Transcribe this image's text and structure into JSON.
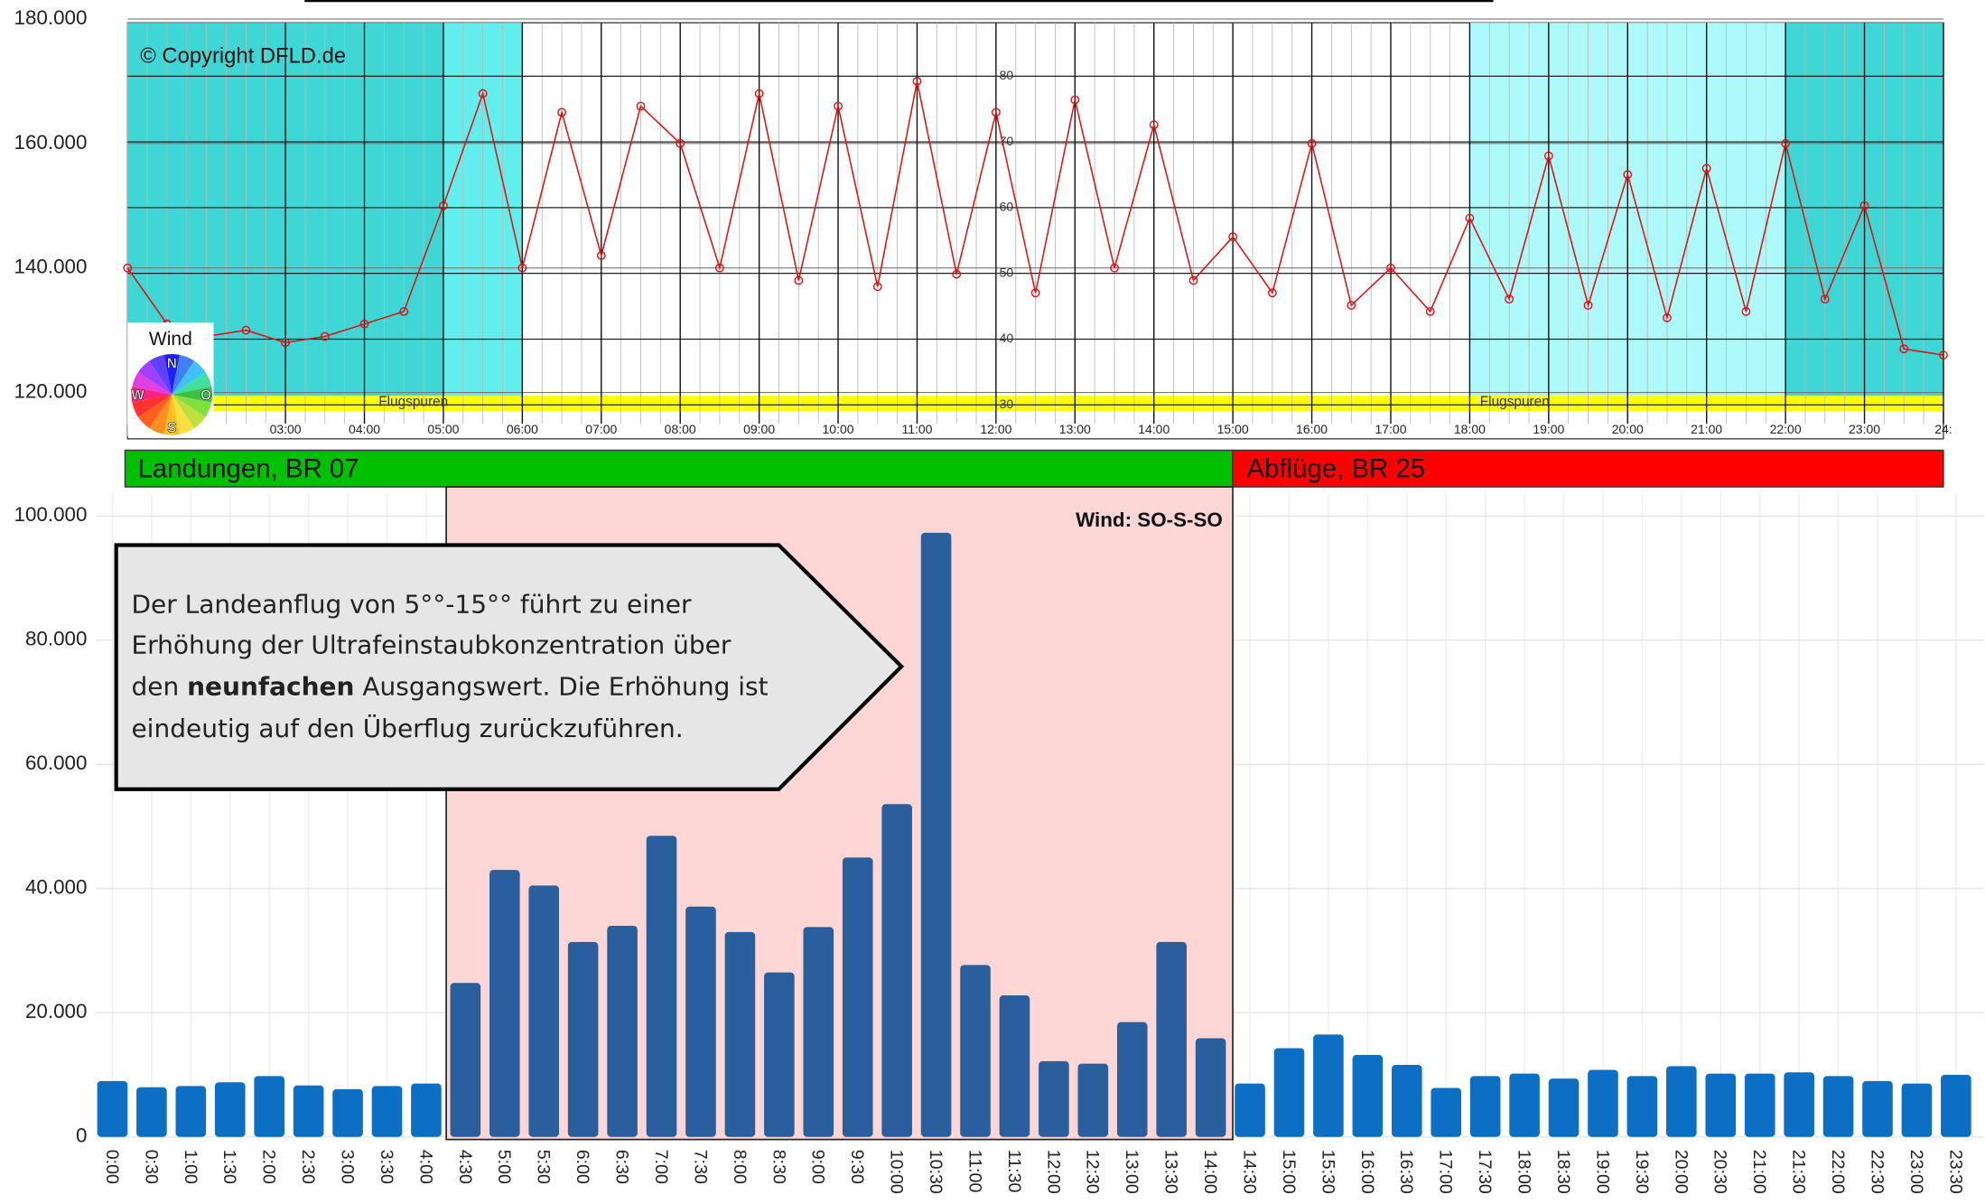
{
  "chart_data": [
    {
      "type": "line",
      "annotations": [
        "© Copyright DFLD.de",
        "Flugspuren",
        "Flugspuren"
      ],
      "wind_legend": {
        "title": "Wind",
        "labels": [
          "N",
          "W",
          "S",
          "O"
        ]
      },
      "xlim": [
        1,
        24
      ],
      "xticks": [
        {
          "value": 3,
          "label": "03:00"
        },
        {
          "value": 4,
          "label": "04:00"
        },
        {
          "value": 5,
          "label": "05:00"
        },
        {
          "value": 6,
          "label": "06:00"
        },
        {
          "value": 7,
          "label": "07:00"
        },
        {
          "value": 8,
          "label": "08:00"
        },
        {
          "value": 9,
          "label": "09:00"
        },
        {
          "value": 10,
          "label": "10:00"
        },
        {
          "value": 11,
          "label": "11:00"
        },
        {
          "value": 12,
          "label": "12:00"
        },
        {
          "value": 13,
          "label": "13:00"
        },
        {
          "value": 14,
          "label": "14:00"
        },
        {
          "value": 15,
          "label": "15:00"
        },
        {
          "value": 16,
          "label": "16:00"
        },
        {
          "value": 17,
          "label": "17:00"
        },
        {
          "value": 18,
          "label": "18:00"
        },
        {
          "value": 19,
          "label": "19:00"
        },
        {
          "value": 20,
          "label": "20:00"
        },
        {
          "value": 21,
          "label": "21:00"
        },
        {
          "value": 22,
          "label": "22:00"
        },
        {
          "value": 23,
          "label": "23:00"
        },
        {
          "value": 24,
          "label": "24:"
        }
      ],
      "ylim": [
        116000,
        180000
      ],
      "yticks": [
        {
          "value": 120000,
          "label": "120.000"
        },
        {
          "value": 140000,
          "label": "140.000"
        },
        {
          "value": 160000,
          "label": "160.000"
        },
        {
          "value": 180000,
          "label": "180.000"
        }
      ],
      "y2lim": [
        28.1,
        88.7
      ],
      "y2ticks": [
        30,
        40,
        50,
        60,
        70,
        80
      ],
      "grid": true,
      "series": [
        {
          "color": "#e01010",
          "x": [
            1,
            1.5,
            2,
            2.5,
            3,
            3.5,
            4,
            4.5,
            5,
            5.5,
            6,
            6.5,
            7,
            7.5,
            8,
            8.5,
            9,
            9.5,
            10,
            10.5,
            11,
            11.5,
            12,
            12.5,
            13,
            13.5,
            14,
            14.5,
            15,
            15.5,
            16,
            16.5,
            17,
            17.5,
            18,
            18.5,
            19,
            19.5,
            20,
            20.5,
            21,
            21.5,
            22,
            22.5,
            23,
            23.5,
            24
          ],
          "values": [
            140000,
            131000,
            129000,
            130000,
            128000,
            129000,
            131000,
            133000,
            150000,
            168000,
            140000,
            165000,
            142000,
            166000,
            160000,
            140000,
            168000,
            138000,
            166000,
            137000,
            170000,
            139000,
            165000,
            136000,
            167000,
            140000,
            163000,
            138000,
            145000,
            136000,
            160000,
            134000,
            140000,
            133000,
            148000,
            135000,
            158000,
            134000,
            155000,
            132000,
            156000,
            133000,
            160000,
            135000,
            150000,
            127000,
            126000
          ]
        }
      ]
    },
    {
      "type": "bar",
      "zones": [
        {
          "label": "Landungen, BR 07",
          "color": "#00c000"
        },
        {
          "label": "Abflüge, BR 25",
          "color": "#ff0000"
        }
      ],
      "annotations": [
        "Wind: SO-S-SO"
      ],
      "callout": [
        "Der Landeanflug von 5°°-15°° führt zu einer",
        "Erhöhung der Ultrafeinstaubkonzentration über",
        "den ",
        "neunfachen",
        " Ausgangswert. Die Erhöhung ist",
        "eindeutig auf den Überflug zurückzuführen."
      ],
      "categories": [
        "0:00",
        "0:30",
        "1:00",
        "1:30",
        "2:00",
        "2:30",
        "3:00",
        "3:30",
        "4:00",
        "4:30",
        "5:00",
        "5:30",
        "6:00",
        "6:30",
        "7:00",
        "7:30",
        "8:00",
        "8:30",
        "9:00",
        "9:30",
        "10:00",
        "10:30",
        "11:00",
        "11:30",
        "12:00",
        "12:30",
        "13:00",
        "13:30",
        "14:00",
        "14:30",
        "15:00",
        "15:30",
        "16:00",
        "16:30",
        "17:00",
        "17:30",
        "18:00",
        "18:30",
        "19:00",
        "19:30",
        "20:00",
        "20:30",
        "21:00",
        "21:30",
        "22:00",
        "22:30",
        "23:00",
        "23:30"
      ],
      "values": [
        9000,
        8000,
        8200,
        8800,
        9800,
        8300,
        7700,
        8200,
        8600,
        24800,
        43000,
        40500,
        31400,
        34000,
        48500,
        37100,
        33000,
        26500,
        33800,
        45000,
        53600,
        97300,
        27700,
        22800,
        12200,
        11800,
        18500,
        31400,
        15900,
        8600,
        14300,
        16500,
        13200,
        11600,
        7900,
        9800,
        10200,
        9400,
        10800,
        9800,
        11400,
        10200,
        10200,
        10400,
        9800,
        9000,
        8600,
        10000
      ],
      "colors": [
        "#0c6fc3",
        "#0c6fc3",
        "#0c6fc3",
        "#0c6fc3",
        "#0c6fc3",
        "#0c6fc3",
        "#0c6fc3",
        "#0c6fc3",
        "#0c6fc3",
        "#2a5f9e",
        "#2a5f9e",
        "#2a5f9e",
        "#2a5f9e",
        "#2a5f9e",
        "#2a5f9e",
        "#2a5f9e",
        "#2a5f9e",
        "#2a5f9e",
        "#2a5f9e",
        "#2a5f9e",
        "#2a5f9e",
        "#2a5f9e",
        "#2a5f9e",
        "#2a5f9e",
        "#2a5f9e",
        "#2a5f9e",
        "#2a5f9e",
        "#2a5f9e",
        "#2a5f9e",
        "#0c6fc3",
        "#0c6fc3",
        "#0c6fc3",
        "#0c6fc3",
        "#0c6fc3",
        "#0c6fc3",
        "#0c6fc3",
        "#0c6fc3",
        "#0c6fc3",
        "#0c6fc3",
        "#0c6fc3",
        "#0c6fc3",
        "#0c6fc3",
        "#0c6fc3",
        "#0c6fc3",
        "#0c6fc3",
        "#0c6fc3",
        "#0c6fc3",
        "#0c6fc3"
      ],
      "ylim": [
        0,
        100000
      ],
      "yticks": [
        0,
        {
          "value": 20000,
          "label": "20.000"
        },
        {
          "value": 40000,
          "label": "40.000"
        },
        {
          "value": 60000,
          "label": "60.000"
        },
        {
          "value": 80000,
          "label": "80.000"
        },
        {
          "value": 100000,
          "label": "100.000"
        }
      ],
      "grid": true
    }
  ]
}
